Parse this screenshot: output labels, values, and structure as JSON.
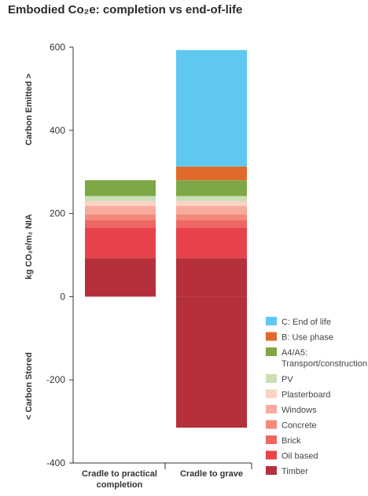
{
  "title": "Embodied Co₂e: completion vs end-of-life",
  "chart_data": {
    "type": "bar",
    "stacked": true,
    "categories": [
      "Cradle to practical completion",
      "Cradle to grave"
    ],
    "category_lines": [
      [
        "Cradle to practical",
        "completion"
      ],
      [
        "Cradle to grave"
      ]
    ],
    "ylim": [
      -400,
      600
    ],
    "yticks": [
      600,
      400,
      200,
      0,
      -200,
      -400
    ],
    "ytick_labels": [
      "600",
      "400",
      "200",
      "0",
      "-200",
      "-400"
    ],
    "ylabel_parts": [
      "Carbon Emitted >",
      "kg CO₂e/m₂ NIA",
      "< Carbon Stored"
    ],
    "series": [
      {
        "name": "Timber",
        "color": "#b5303a",
        "values": [
          93,
          93
        ],
        "negative": [
          0,
          -315
        ]
      },
      {
        "name": "Oil based",
        "color": "#e8434c",
        "values": [
          73,
          73
        ]
      },
      {
        "name": "Brick",
        "color": "#ef6762",
        "values": [
          18,
          18
        ]
      },
      {
        "name": "Concrete",
        "color": "#f38a7c",
        "values": [
          14,
          14
        ]
      },
      {
        "name": "Windows",
        "color": "#f7ab9c",
        "values": [
          20,
          20
        ]
      },
      {
        "name": "Plasterboard",
        "color": "#fbd2c4",
        "values": [
          12,
          12
        ]
      },
      {
        "name": "PV",
        "color": "#c9dfb6",
        "values": [
          12,
          12
        ]
      },
      {
        "name": "A4/A5: Transport/construction",
        "color": "#7ea746",
        "values": [
          38,
          38
        ]
      },
      {
        "name": "B: Use phase",
        "color": "#e06a2b",
        "values": [
          0,
          33
        ]
      },
      {
        "name": "C: End of life",
        "color": "#5ec8f0",
        "values": [
          0,
          280
        ]
      }
    ],
    "legend": [
      {
        "lines": [
          "C: End of life"
        ],
        "color": "#5ec8f0"
      },
      {
        "lines": [
          "B: Use phase"
        ],
        "color": "#e06a2b"
      },
      {
        "lines": [
          "A4/A5:",
          "Transport/construction"
        ],
        "color": "#7ea746"
      },
      {
        "lines": [
          "PV"
        ],
        "color": "#c9dfb6"
      },
      {
        "lines": [
          "Plasterboard"
        ],
        "color": "#fbd2c4"
      },
      {
        "lines": [
          "Windows"
        ],
        "color": "#f7ab9c"
      },
      {
        "lines": [
          "Concrete"
        ],
        "color": "#f38a7c"
      },
      {
        "lines": [
          "Brick"
        ],
        "color": "#ef6762"
      },
      {
        "lines": [
          "Oil based"
        ],
        "color": "#e8434c"
      },
      {
        "lines": [
          "Timber"
        ],
        "color": "#b5303a"
      }
    ],
    "grid": false,
    "legend_position": "bottom-right"
  }
}
